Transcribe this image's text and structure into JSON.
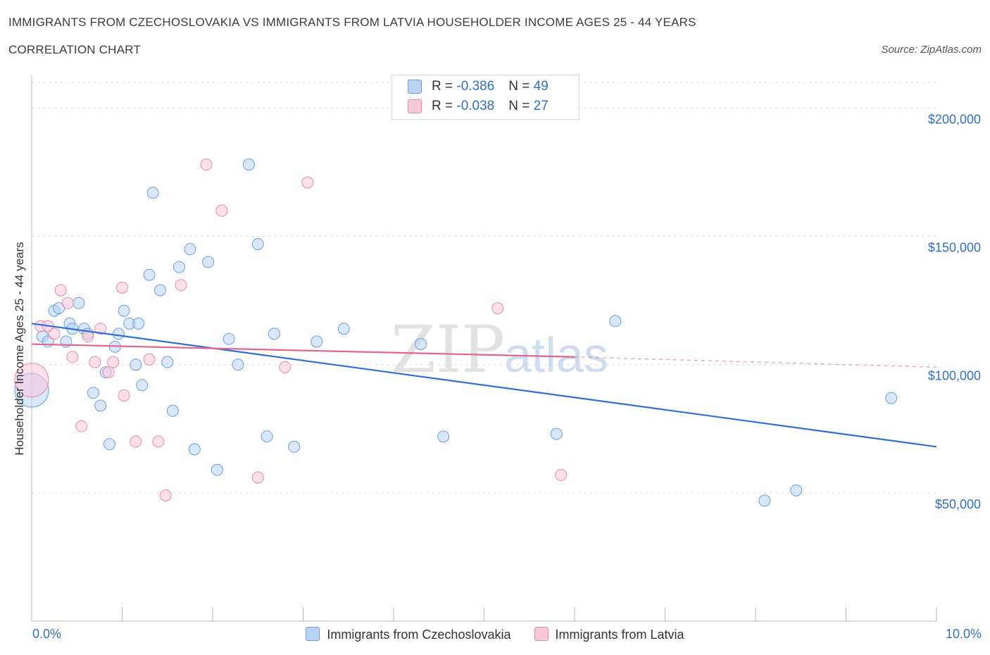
{
  "header": {
    "title": "IMMIGRANTS FROM CZECHOSLOVAKIA VS IMMIGRANTS FROM LATVIA HOUSEHOLDER INCOME AGES 25 - 44 YEARS",
    "subtitle": "CORRELATION CHART",
    "source": "Source: ZipAtlas.com"
  },
  "legend": {
    "rows": [
      {
        "r_label": "R = ",
        "r_value": "-0.386",
        "n_label": "N = ",
        "n_value": "49"
      },
      {
        "r_label": "R = ",
        "r_value": "-0.038",
        "n_label": "N = ",
        "n_value": "27"
      }
    ]
  },
  "colors": {
    "blue_fill": "#b8d3f5",
    "blue_stroke": "#6a9ee0",
    "blue_line": "#2f6fd6",
    "pink_fill": "#f9c9d8",
    "pink_stroke": "#e88aa8",
    "pink_line": "#e06890",
    "axis_text": "#2f6fc9",
    "grid": "#dddddd"
  },
  "watermark": {
    "zip": "ZIP",
    "atlas": "atlas"
  },
  "chart_data": {
    "type": "scatter",
    "xlabel": "",
    "ylabel": "Householder Income Ages 25 - 44 years",
    "xlim": [
      0,
      10
    ],
    "ylim": [
      0,
      210000
    ],
    "x_tick_labels": [
      "0.0%",
      "10.0%"
    ],
    "y_ticks": [
      50000,
      100000,
      150000,
      200000
    ],
    "y_tick_labels": [
      "$50,000",
      "$100,000",
      "$150,000",
      "$200,000"
    ],
    "grid": true,
    "series": [
      {
        "name": "Immigrants from Czechoslovakia",
        "color": "blue",
        "r": -0.386,
        "n": 49,
        "trend": {
          "x": [
            0.0,
            10.0
          ],
          "y": [
            116000,
            68000
          ],
          "dashed_from": null
        },
        "points": [
          {
            "x": 0.0,
            "y": 90000,
            "big": true
          },
          {
            "x": 0.12,
            "y": 111000
          },
          {
            "x": 0.18,
            "y": 109000
          },
          {
            "x": 0.25,
            "y": 121000
          },
          {
            "x": 0.3,
            "y": 122000
          },
          {
            "x": 0.38,
            "y": 109000
          },
          {
            "x": 0.42,
            "y": 116000
          },
          {
            "x": 0.45,
            "y": 114000
          },
          {
            "x": 0.52,
            "y": 124000
          },
          {
            "x": 0.58,
            "y": 114000
          },
          {
            "x": 0.62,
            "y": 112000
          },
          {
            "x": 0.68,
            "y": 89000
          },
          {
            "x": 0.76,
            "y": 84000
          },
          {
            "x": 0.82,
            "y": 97000
          },
          {
            "x": 0.86,
            "y": 69000
          },
          {
            "x": 0.92,
            "y": 107000
          },
          {
            "x": 0.96,
            "y": 112000
          },
          {
            "x": 1.02,
            "y": 121000
          },
          {
            "x": 1.08,
            "y": 116000
          },
          {
            "x": 1.15,
            "y": 100000
          },
          {
            "x": 1.18,
            "y": 116000
          },
          {
            "x": 1.22,
            "y": 92000
          },
          {
            "x": 1.3,
            "y": 135000
          },
          {
            "x": 1.34,
            "y": 167000
          },
          {
            "x": 1.42,
            "y": 129000
          },
          {
            "x": 1.5,
            "y": 101000
          },
          {
            "x": 1.56,
            "y": 82000
          },
          {
            "x": 1.63,
            "y": 138000
          },
          {
            "x": 1.75,
            "y": 145000
          },
          {
            "x": 1.8,
            "y": 67000
          },
          {
            "x": 1.95,
            "y": 140000
          },
          {
            "x": 2.05,
            "y": 59000
          },
          {
            "x": 2.18,
            "y": 110000
          },
          {
            "x": 2.28,
            "y": 100000
          },
          {
            "x": 2.4,
            "y": 178000
          },
          {
            "x": 2.5,
            "y": 147000
          },
          {
            "x": 2.6,
            "y": 72000
          },
          {
            "x": 2.68,
            "y": 112000
          },
          {
            "x": 2.9,
            "y": 68000
          },
          {
            "x": 3.15,
            "y": 109000
          },
          {
            "x": 3.45,
            "y": 114000
          },
          {
            "x": 4.3,
            "y": 108000
          },
          {
            "x": 4.55,
            "y": 72000
          },
          {
            "x": 5.8,
            "y": 73000
          },
          {
            "x": 6.45,
            "y": 117000
          },
          {
            "x": 8.1,
            "y": 47000
          },
          {
            "x": 8.45,
            "y": 51000
          },
          {
            "x": 9.5,
            "y": 87000
          }
        ]
      },
      {
        "name": "Immigrants from Latvia",
        "color": "pink",
        "r": -0.038,
        "n": 27,
        "trend": {
          "x": [
            0.0,
            6.0,
            10.0
          ],
          "y": [
            108000,
            103000,
            99000
          ],
          "dashed_from": 6.0
        },
        "points": [
          {
            "x": 0.0,
            "y": 94000,
            "big": true
          },
          {
            "x": 0.1,
            "y": 115000
          },
          {
            "x": 0.18,
            "y": 115000
          },
          {
            "x": 0.25,
            "y": 112000
          },
          {
            "x": 0.32,
            "y": 129000
          },
          {
            "x": 0.4,
            "y": 124000
          },
          {
            "x": 0.45,
            "y": 103000
          },
          {
            "x": 0.55,
            "y": 76000
          },
          {
            "x": 0.62,
            "y": 111000
          },
          {
            "x": 0.7,
            "y": 101000
          },
          {
            "x": 0.76,
            "y": 114000
          },
          {
            "x": 0.85,
            "y": 97000
          },
          {
            "x": 0.9,
            "y": 101000
          },
          {
            "x": 1.0,
            "y": 130000
          },
          {
            "x": 1.02,
            "y": 88000
          },
          {
            "x": 1.15,
            "y": 70000
          },
          {
            "x": 1.3,
            "y": 102000
          },
          {
            "x": 1.4,
            "y": 70000
          },
          {
            "x": 1.48,
            "y": 49000
          },
          {
            "x": 1.65,
            "y": 131000
          },
          {
            "x": 1.93,
            "y": 178000
          },
          {
            "x": 2.1,
            "y": 160000
          },
          {
            "x": 2.5,
            "y": 56000
          },
          {
            "x": 2.8,
            "y": 99000
          },
          {
            "x": 3.05,
            "y": 171000
          },
          {
            "x": 5.15,
            "y": 122000
          },
          {
            "x": 5.85,
            "y": 57000
          }
        ]
      }
    ]
  }
}
